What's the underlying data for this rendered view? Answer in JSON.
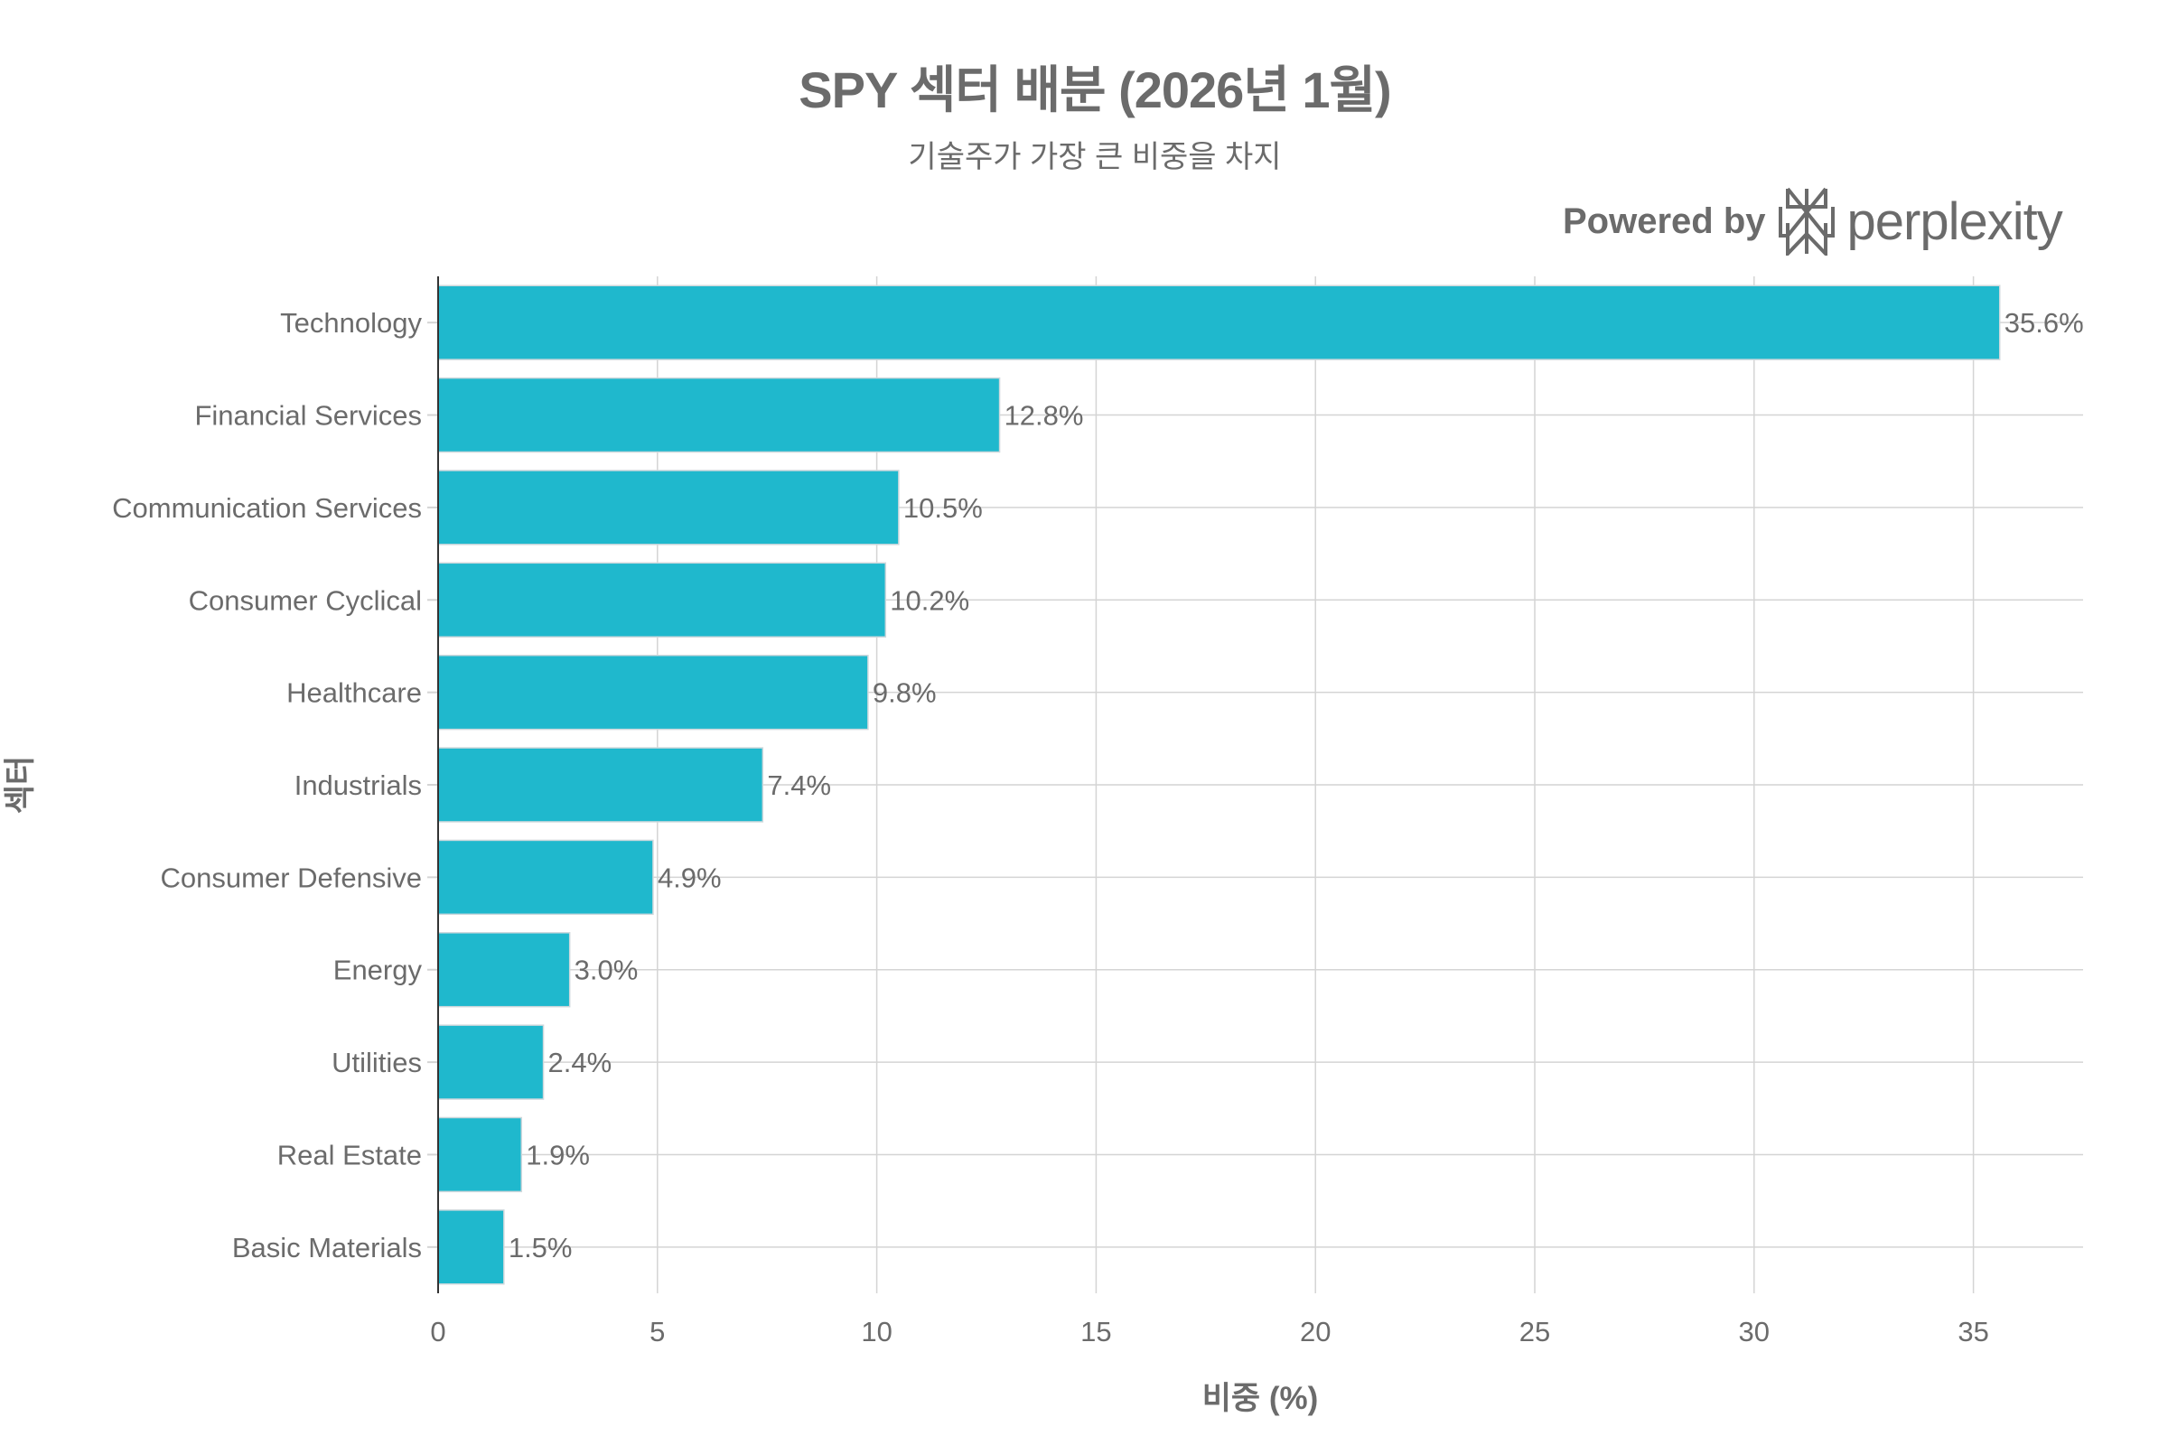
{
  "chart_data": {
    "type": "bar",
    "orientation": "horizontal",
    "title": "SPY 섹터 배분 (2026년 1월)",
    "subtitle": "기술주가 가장 큰 비중을 차지",
    "xlabel": "비중 (%)",
    "ylabel": "섹터",
    "categories": [
      "Technology",
      "Financial Services",
      "Communication Services",
      "Consumer Cyclical",
      "Healthcare",
      "Industrials",
      "Consumer Defensive",
      "Energy",
      "Utilities",
      "Real Estate",
      "Basic Materials"
    ],
    "values": [
      35.6,
      12.8,
      10.5,
      10.2,
      9.8,
      7.4,
      4.9,
      3.0,
      2.4,
      1.9,
      1.5
    ],
    "data_labels": [
      "35.6%",
      "12.8%",
      "10.5%",
      "10.2%",
      "9.8%",
      "7.4%",
      "4.9%",
      "3.0%",
      "2.4%",
      "1.9%",
      "1.5%"
    ],
    "xlim": [
      0,
      37.5
    ],
    "xticks": [
      0,
      5,
      10,
      15,
      20,
      25,
      30,
      35
    ],
    "xtick_labels": [
      "0",
      "5",
      "10",
      "15",
      "20",
      "25",
      "30",
      "35"
    ],
    "grid": true,
    "bar_color": "#1FB8CD"
  },
  "branding": {
    "powered_by": "Powered by",
    "name": "perplexity"
  }
}
